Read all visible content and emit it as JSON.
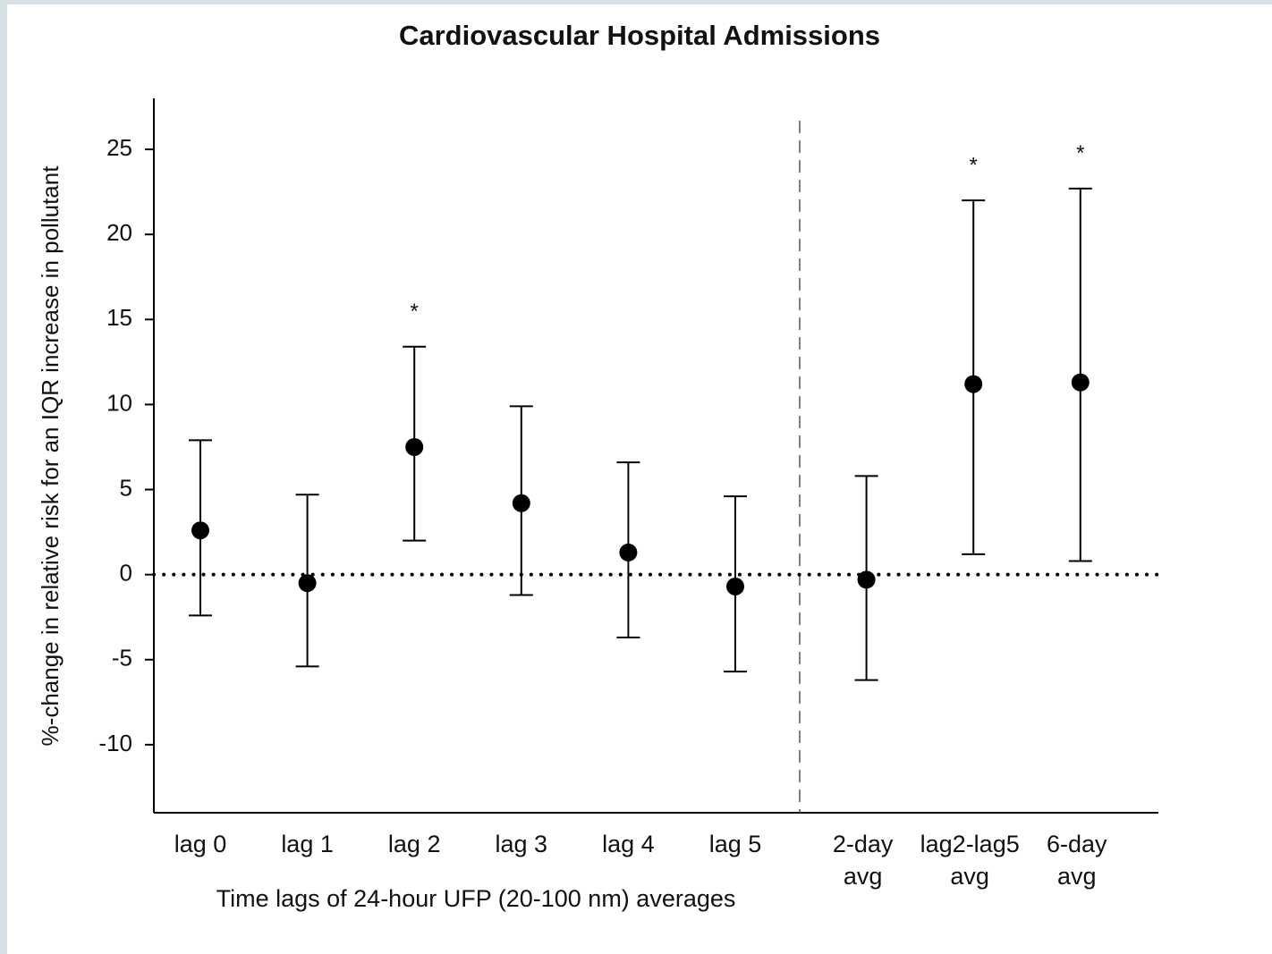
{
  "chart_data": {
    "type": "errorbar",
    "title": "Cardiovascular Hospital Admissions",
    "y_label": "%-change in relative risk for an IQR increase in pollutant",
    "x_label": "Time lags of 24-hour UFP (20-100 nm) averages",
    "categories": [
      "lag 0",
      "lag 1",
      "lag 2",
      "lag 3",
      "lag 4",
      "lag 5",
      "2-day\navg",
      "lag2-lag5\navg",
      "6-day\navg"
    ],
    "values": [
      2.6,
      -0.5,
      7.5,
      4.2,
      1.3,
      -0.7,
      -0.3,
      11.2,
      11.3
    ],
    "lower": [
      -2.4,
      -5.4,
      2.0,
      -1.2,
      -3.7,
      -5.7,
      -6.2,
      1.2,
      0.8
    ],
    "upper": [
      7.9,
      4.7,
      13.4,
      9.9,
      6.6,
      4.6,
      5.8,
      22.0,
      22.7
    ],
    "significant": [
      false,
      false,
      true,
      false,
      false,
      false,
      false,
      true,
      true
    ],
    "significance_marker": "*",
    "color": "#000000",
    "reference_line": 0,
    "ylim": [
      -14,
      28
    ],
    "yticks": [
      -10,
      -5,
      0,
      5,
      10,
      15,
      20,
      25
    ]
  }
}
